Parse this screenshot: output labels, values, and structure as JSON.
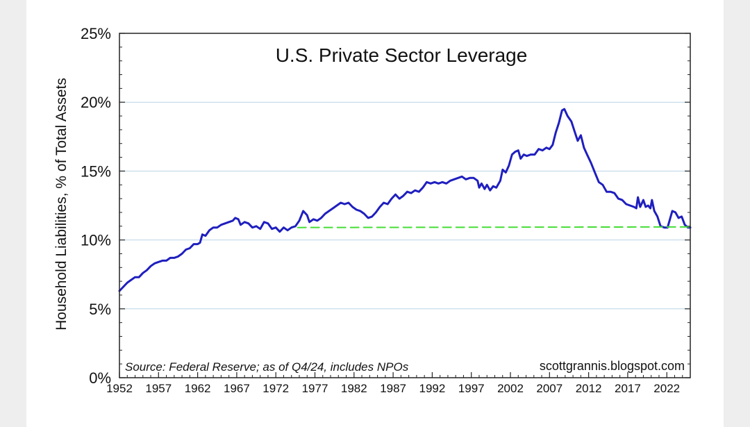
{
  "chart_data": {
    "type": "line",
    "title": "U.S. Private Sector Leverage",
    "ylabel": "Household Liabilities, % of Total Assets",
    "source": "Source: Federal Reserve; as of Q4/24, includes NPOs",
    "credit": "scottgrannis.blogspot.com",
    "ylim": [
      0,
      25
    ],
    "xlim": [
      1952,
      2025
    ],
    "y_ticks": [
      0,
      5,
      10,
      15,
      20,
      25
    ],
    "y_tick_labels": [
      "0%",
      "5%",
      "10%",
      "15%",
      "20%",
      "25%"
    ],
    "x_ticks": [
      1952,
      1957,
      1962,
      1967,
      1972,
      1977,
      1982,
      1987,
      1992,
      1997,
      2002,
      2007,
      2012,
      2017,
      2022
    ],
    "x_tick_labels": [
      "1952",
      "1957",
      "1962",
      "1967",
      "1972",
      "1977",
      "1982",
      "1987",
      "1992",
      "1997",
      "2002",
      "2007",
      "2012",
      "2017",
      "2022"
    ],
    "grid": true,
    "series": [
      {
        "color": "#1f1fbf",
        "points": [
          [
            1952.0,
            6.3
          ],
          [
            1952.5,
            6.6
          ],
          [
            1953.0,
            6.9
          ],
          [
            1953.5,
            7.1
          ],
          [
            1954.0,
            7.3
          ],
          [
            1954.5,
            7.3
          ],
          [
            1955.0,
            7.6
          ],
          [
            1955.5,
            7.8
          ],
          [
            1956.0,
            8.1
          ],
          [
            1956.5,
            8.3
          ],
          [
            1957.0,
            8.4
          ],
          [
            1957.5,
            8.5
          ],
          [
            1958.0,
            8.5
          ],
          [
            1958.5,
            8.7
          ],
          [
            1959.0,
            8.7
          ],
          [
            1959.5,
            8.8
          ],
          [
            1960.0,
            9.0
          ],
          [
            1960.5,
            9.3
          ],
          [
            1961.0,
            9.4
          ],
          [
            1961.5,
            9.7
          ],
          [
            1962.0,
            9.7
          ],
          [
            1962.3,
            9.8
          ],
          [
            1962.6,
            10.4
          ],
          [
            1963.0,
            10.3
          ],
          [
            1963.5,
            10.7
          ],
          [
            1964.0,
            10.9
          ],
          [
            1964.5,
            10.9
          ],
          [
            1965.0,
            11.1
          ],
          [
            1965.5,
            11.2
          ],
          [
            1966.0,
            11.3
          ],
          [
            1966.5,
            11.4
          ],
          [
            1966.8,
            11.6
          ],
          [
            1967.2,
            11.5
          ],
          [
            1967.5,
            11.1
          ],
          [
            1968.0,
            11.3
          ],
          [
            1968.5,
            11.2
          ],
          [
            1969.0,
            10.9
          ],
          [
            1969.5,
            11.0
          ],
          [
            1970.0,
            10.8
          ],
          [
            1970.5,
            11.3
          ],
          [
            1971.0,
            11.2
          ],
          [
            1971.5,
            10.8
          ],
          [
            1972.0,
            10.9
          ],
          [
            1972.5,
            10.6
          ],
          [
            1973.0,
            10.9
          ],
          [
            1973.5,
            10.7
          ],
          [
            1974.0,
            10.9
          ],
          [
            1974.5,
            11.0
          ],
          [
            1975.0,
            11.4
          ],
          [
            1975.5,
            12.1
          ],
          [
            1976.0,
            11.8
          ],
          [
            1976.3,
            11.3
          ],
          [
            1976.8,
            11.5
          ],
          [
            1977.3,
            11.4
          ],
          [
            1977.8,
            11.6
          ],
          [
            1978.3,
            11.9
          ],
          [
            1978.8,
            12.1
          ],
          [
            1979.3,
            12.3
          ],
          [
            1979.8,
            12.5
          ],
          [
            1980.3,
            12.7
          ],
          [
            1980.8,
            12.6
          ],
          [
            1981.3,
            12.7
          ],
          [
            1981.8,
            12.4
          ],
          [
            1982.3,
            12.2
          ],
          [
            1982.8,
            12.1
          ],
          [
            1983.3,
            11.9
          ],
          [
            1983.8,
            11.6
          ],
          [
            1984.3,
            11.7
          ],
          [
            1984.8,
            12.0
          ],
          [
            1985.3,
            12.4
          ],
          [
            1985.8,
            12.7
          ],
          [
            1986.3,
            12.6
          ],
          [
            1986.8,
            13.0
          ],
          [
            1987.3,
            13.3
          ],
          [
            1987.8,
            13.0
          ],
          [
            1988.3,
            13.2
          ],
          [
            1988.8,
            13.5
          ],
          [
            1989.3,
            13.4
          ],
          [
            1989.8,
            13.6
          ],
          [
            1990.3,
            13.5
          ],
          [
            1990.8,
            13.8
          ],
          [
            1991.3,
            14.2
          ],
          [
            1991.8,
            14.1
          ],
          [
            1992.3,
            14.2
          ],
          [
            1992.8,
            14.1
          ],
          [
            1993.3,
            14.2
          ],
          [
            1993.8,
            14.1
          ],
          [
            1994.3,
            14.3
          ],
          [
            1994.8,
            14.4
          ],
          [
            1995.3,
            14.5
          ],
          [
            1995.8,
            14.6
          ],
          [
            1996.3,
            14.4
          ],
          [
            1996.8,
            14.5
          ],
          [
            1997.3,
            14.5
          ],
          [
            1997.8,
            14.3
          ],
          [
            1998.0,
            13.8
          ],
          [
            1998.3,
            14.1
          ],
          [
            1998.7,
            13.7
          ],
          [
            1999.0,
            14.0
          ],
          [
            1999.4,
            13.6
          ],
          [
            1999.8,
            13.9
          ],
          [
            2000.2,
            13.8
          ],
          [
            2000.7,
            14.3
          ],
          [
            2001.0,
            15.1
          ],
          [
            2001.4,
            14.9
          ],
          [
            2001.8,
            15.4
          ],
          [
            2002.2,
            16.2
          ],
          [
            2002.6,
            16.4
          ],
          [
            2003.0,
            16.5
          ],
          [
            2003.3,
            15.9
          ],
          [
            2003.7,
            16.2
          ],
          [
            2004.1,
            16.1
          ],
          [
            2004.6,
            16.2
          ],
          [
            2005.1,
            16.2
          ],
          [
            2005.6,
            16.6
          ],
          [
            2006.1,
            16.5
          ],
          [
            2006.6,
            16.7
          ],
          [
            2007.0,
            16.6
          ],
          [
            2007.4,
            16.9
          ],
          [
            2007.8,
            17.8
          ],
          [
            2008.2,
            18.5
          ],
          [
            2008.6,
            19.4
          ],
          [
            2008.9,
            19.5
          ],
          [
            2009.3,
            19.0
          ],
          [
            2009.8,
            18.6
          ],
          [
            2010.2,
            17.9
          ],
          [
            2010.6,
            17.2
          ],
          [
            2011.0,
            17.6
          ],
          [
            2011.4,
            16.7
          ],
          [
            2011.8,
            16.2
          ],
          [
            2012.3,
            15.6
          ],
          [
            2012.8,
            14.9
          ],
          [
            2013.3,
            14.2
          ],
          [
            2013.8,
            14.0
          ],
          [
            2014.3,
            13.5
          ],
          [
            2014.8,
            13.5
          ],
          [
            2015.3,
            13.4
          ],
          [
            2015.8,
            13.0
          ],
          [
            2016.3,
            12.9
          ],
          [
            2016.8,
            12.6
          ],
          [
            2017.3,
            12.5
          ],
          [
            2017.8,
            12.4
          ],
          [
            2018.1,
            12.3
          ],
          [
            2018.3,
            13.1
          ],
          [
            2018.6,
            12.4
          ],
          [
            2019.0,
            12.9
          ],
          [
            2019.3,
            12.4
          ],
          [
            2019.6,
            12.5
          ],
          [
            2019.9,
            12.3
          ],
          [
            2020.1,
            12.9
          ],
          [
            2020.4,
            12.1
          ],
          [
            2020.8,
            11.7
          ],
          [
            2021.2,
            11.0
          ],
          [
            2021.7,
            10.9
          ],
          [
            2022.1,
            10.9
          ],
          [
            2022.4,
            11.5
          ],
          [
            2022.7,
            12.1
          ],
          [
            2023.1,
            12.0
          ],
          [
            2023.5,
            11.6
          ],
          [
            2023.9,
            11.7
          ],
          [
            2024.3,
            11.1
          ],
          [
            2024.7,
            10.9
          ],
          [
            2025.0,
            10.9
          ]
        ]
      },
      {
        "color": "#44dd33",
        "dashed": true,
        "points": [
          [
            1974.8,
            10.9
          ],
          [
            2025.0,
            10.95
          ]
        ]
      }
    ]
  }
}
